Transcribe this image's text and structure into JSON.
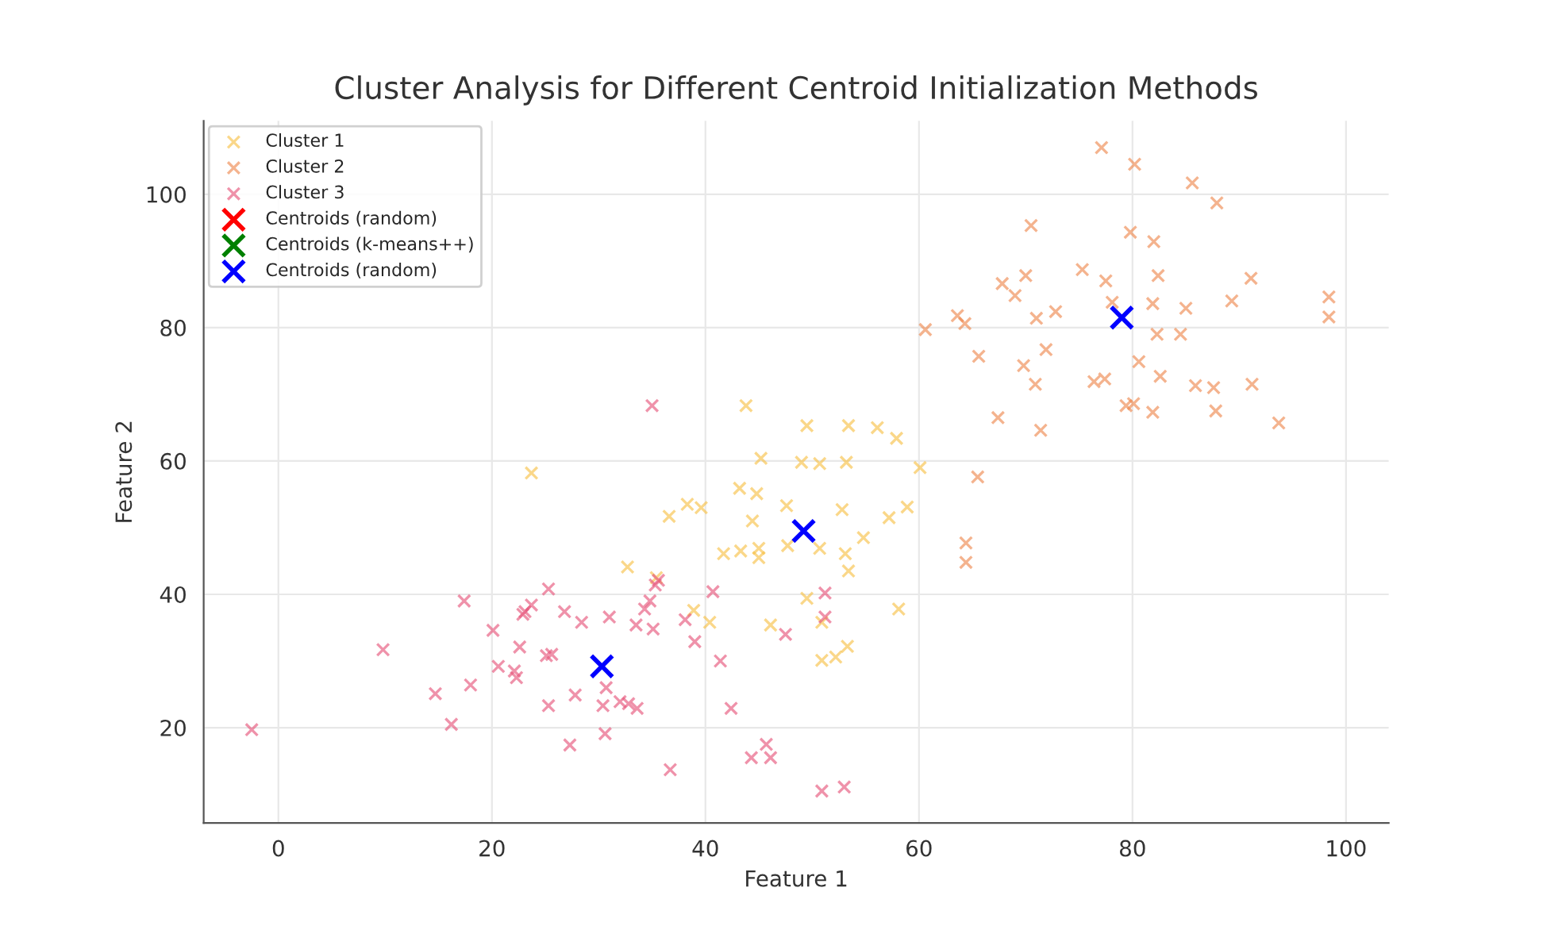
{
  "chart_data": {
    "type": "scatter",
    "title": "Cluster Analysis for Different Centroid Initialization Methods",
    "xlabel": "Feature 1",
    "ylabel": "Feature 2",
    "xlim": [
      -7,
      104
    ],
    "ylim": [
      5.7,
      111
    ],
    "xticks": [
      0,
      20,
      40,
      60,
      80,
      100
    ],
    "yticks": [
      20,
      40,
      60,
      80,
      100
    ],
    "grid": true,
    "legend": "top left",
    "marker": "cross",
    "series": [
      {
        "name": "Cluster 1",
        "color": "#f7c24a",
        "x": [
          43.8,
          49.5,
          53.4,
          56.1,
          57.9,
          45.2,
          49.0,
          50.7,
          53.2,
          60.1,
          43.2,
          44.8,
          38.3,
          39.6,
          36.6,
          47.6,
          44.4,
          52.8,
          57.2,
          58.9,
          54.8,
          50.7,
          53.1,
          53.4,
          41.7,
          43.3,
          45.0,
          45.0,
          47.7,
          32.7,
          35.4,
          49.5,
          38.9,
          40.4,
          46.1,
          50.9,
          58.1,
          50.9,
          52.2,
          53.3,
          23.7
        ],
        "values": [
          68.3,
          65.3,
          65.3,
          65.0,
          63.4,
          60.4,
          59.8,
          59.6,
          59.8,
          59.0,
          55.9,
          55.1,
          53.5,
          53.0,
          51.7,
          53.3,
          51.0,
          52.7,
          51.5,
          53.1,
          48.5,
          46.9,
          46.1,
          43.5,
          46.1,
          46.5,
          46.9,
          45.5,
          47.3,
          44.1,
          42.5,
          39.4,
          37.6,
          35.8,
          35.4,
          35.8,
          37.8,
          30.1,
          30.6,
          32.2,
          58.2
        ]
      },
      {
        "name": "Cluster 2",
        "color": "#ee8a52",
        "x": [
          77.1,
          80.2,
          85.6,
          87.9,
          70.5,
          79.8,
          82.0,
          75.3,
          70.0,
          67.8,
          69.0,
          77.5,
          82.4,
          91.1,
          72.8,
          71.0,
          78.1,
          81.9,
          85.0,
          89.3,
          98.4,
          98.4,
          63.6,
          64.3,
          60.6,
          82.3,
          84.5,
          65.6,
          71.9,
          69.8,
          70.9,
          80.6,
          82.6,
          76.4,
          77.4,
          85.9,
          87.6,
          91.2,
          67.4,
          71.4,
          79.4,
          80.1,
          81.9,
          87.8,
          93.7,
          65.5,
          64.4,
          64.4
        ],
        "values": [
          107.0,
          104.5,
          101.7,
          98.7,
          95.3,
          94.3,
          92.9,
          88.7,
          87.8,
          86.6,
          84.8,
          87.0,
          87.8,
          87.4,
          82.4,
          81.4,
          83.8,
          83.6,
          82.9,
          84.0,
          84.6,
          81.6,
          81.8,
          80.6,
          79.7,
          79.0,
          79.0,
          75.7,
          76.7,
          74.3,
          71.5,
          74.9,
          72.7,
          71.9,
          72.3,
          71.3,
          71.0,
          71.5,
          66.5,
          64.6,
          68.3,
          68.6,
          67.3,
          67.5,
          65.7,
          57.6,
          47.7,
          44.8
        ]
      },
      {
        "name": "Cluster 3",
        "color": "#e6587c",
        "x": [
          35.0,
          -2.5,
          9.8,
          14.7,
          16.2,
          17.4,
          18.0,
          20.1,
          20.6,
          22.1,
          22.3,
          22.6,
          23.1,
          23.7,
          22.9,
          25.3,
          25.1,
          25.6,
          25.3,
          26.8,
          27.3,
          27.8,
          28.4,
          30.7,
          30.4,
          30.6,
          31.0,
          32.0,
          32.8,
          33.6,
          33.5,
          34.3,
          34.8,
          35.3,
          35.6,
          35.1,
          36.7,
          38.1,
          39.0,
          40.7,
          41.4,
          42.4,
          44.3,
          45.7,
          46.1,
          47.5,
          50.9,
          51.2,
          53.0,
          51.2
        ],
        "values": [
          68.3,
          19.7,
          31.7,
          25.1,
          20.5,
          39.0,
          26.4,
          34.6,
          29.2,
          28.5,
          27.5,
          32.1,
          37.4,
          38.4,
          37.0,
          40.8,
          30.8,
          31.0,
          23.3,
          37.4,
          17.4,
          24.9,
          35.8,
          26.0,
          23.3,
          19.1,
          36.6,
          23.9,
          23.6,
          22.9,
          35.4,
          37.8,
          39.0,
          41.4,
          42.1,
          34.8,
          13.7,
          36.2,
          32.9,
          40.4,
          30.0,
          22.9,
          15.5,
          17.5,
          15.5,
          34.0,
          10.5,
          40.2,
          11.1,
          36.6
        ]
      },
      {
        "name": "Centroids (random)",
        "color": "#ff0000"
      },
      {
        "name": "Centroids (k-means++)",
        "color": "#008000"
      },
      {
        "name": "Centroids (random)",
        "color": "#0000ff",
        "x": [
          30.3,
          49.2,
          79.0
        ],
        "values": [
          29.2,
          49.5,
          81.5
        ]
      }
    ]
  }
}
